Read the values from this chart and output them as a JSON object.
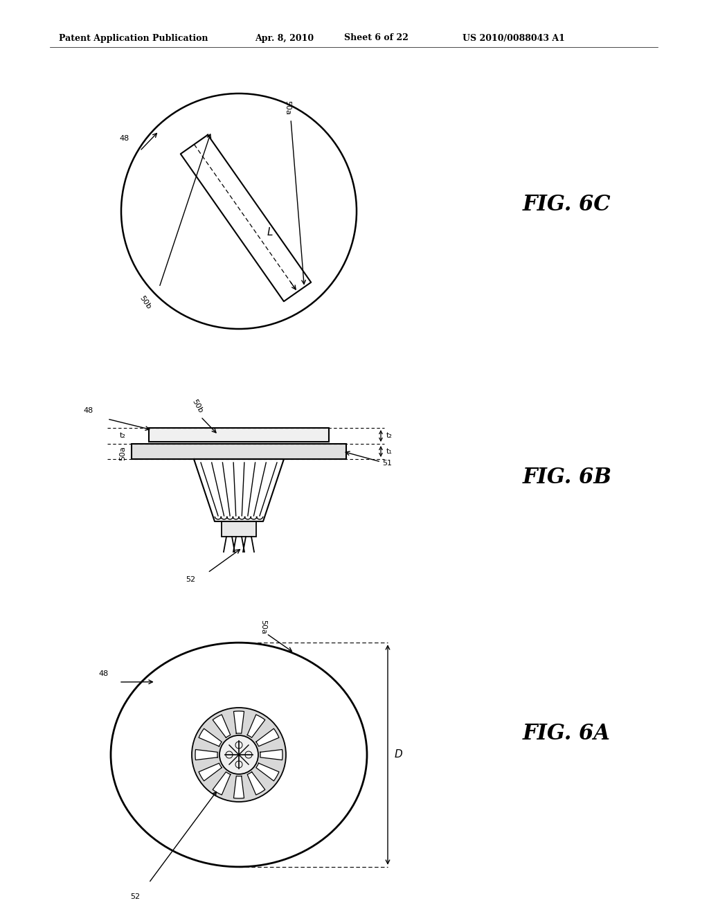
{
  "bg_color": "#ffffff",
  "header_text": "Patent Application Publication",
  "header_date": "Apr. 8, 2010",
  "header_sheet": "Sheet 6 of 22",
  "header_patent": "US 2010/0088043 A1",
  "fig6c_label": "FIG. 6C",
  "fig6b_label": "FIG. 6B",
  "fig6a_label": "FIG. 6A",
  "lc": "#000000"
}
